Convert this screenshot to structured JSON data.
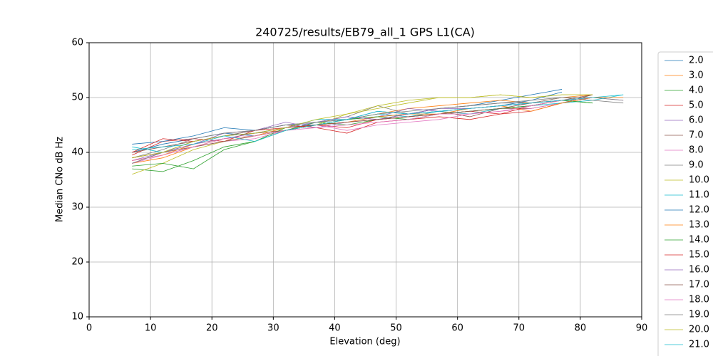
{
  "chart_data": {
    "type": "line",
    "title": "240725/results/EB79_all_1 GPS L1(CA)",
    "x_label": "Elevation (deg)",
    "y_label": "Median CNo dB Hz",
    "x": [
      7,
      12,
      17,
      22,
      27,
      32,
      37,
      42,
      47,
      52,
      57,
      62,
      67,
      72,
      77,
      82,
      87
    ],
    "xlim": [
      0,
      90
    ],
    "xticks": [
      0,
      10,
      20,
      30,
      40,
      50,
      60,
      70,
      80,
      90
    ],
    "ylim": [
      10,
      60
    ],
    "yticks": [
      10,
      20,
      30,
      40,
      50,
      60
    ],
    "grid": true,
    "legend": "outside right",
    "series": [
      {
        "name": "2.0",
        "color": "#1f77b4",
        "values": [
          40,
          41.5,
          42.5,
          43.5,
          43,
          44,
          45.5,
          46,
          47.5,
          47,
          48,
          48.5,
          49.5,
          50.5,
          51.5,
          null,
          null
        ]
      },
      {
        "name": "3.0",
        "color": "#ff7f0e",
        "values": [
          38,
          39,
          41,
          42.5,
          43,
          44.5,
          45,
          46,
          47,
          48,
          48.5,
          49,
          49.5,
          49,
          50,
          50.5,
          null
        ]
      },
      {
        "name": "4.0",
        "color": "#2ca02c",
        "values": [
          37,
          36.5,
          38.5,
          41,
          42,
          44,
          45.5,
          45,
          46,
          46.5,
          47,
          47.5,
          48,
          48.5,
          49.5,
          49,
          null
        ]
      },
      {
        "name": "5.0",
        "color": "#d62728",
        "values": [
          39.5,
          42,
          42.5,
          42,
          44,
          45,
          44.5,
          43.5,
          45.5,
          46,
          46.5,
          46,
          47,
          47.5,
          49,
          50,
          null
        ]
      },
      {
        "name": "6.0",
        "color": "#9467bd",
        "values": [
          38.5,
          40,
          41.5,
          43.5,
          44,
          45.5,
          44.5,
          45.5,
          46.5,
          48,
          47.5,
          48,
          48.5,
          49,
          49.5,
          50,
          49.5
        ]
      },
      {
        "name": "7.0",
        "color": "#8c564b",
        "values": [
          40,
          41,
          42,
          43,
          43.5,
          44,
          45,
          45.5,
          46,
          47,
          47.5,
          46.5,
          48,
          48,
          49,
          50.5,
          null
        ]
      },
      {
        "name": "8.0",
        "color": "#e377c2",
        "values": [
          38,
          39.5,
          41,
          42,
          42.5,
          44,
          45,
          44,
          45,
          45.5,
          46,
          47,
          47.5,
          48,
          49,
          50,
          null
        ]
      },
      {
        "name": "9.0",
        "color": "#7f7f7f",
        "values": [
          39,
          40.5,
          42.5,
          43.5,
          44,
          45,
          45.5,
          46.5,
          48.5,
          47,
          48,
          48.5,
          49,
          49,
          50,
          50,
          49.5
        ]
      },
      {
        "name": "10.0",
        "color": "#bcbd22",
        "values": [
          36,
          38,
          40.5,
          42,
          43,
          44,
          45,
          47,
          48,
          49,
          50,
          50,
          50.5,
          50,
          50.5,
          50.5,
          null
        ]
      },
      {
        "name": "11.0",
        "color": "#17becf",
        "values": [
          41,
          40,
          42,
          43,
          43.5,
          44.5,
          46,
          46,
          47,
          46.5,
          47.5,
          47,
          48,
          48.5,
          49,
          49.5,
          50.5
        ]
      },
      {
        "name": "12.0",
        "color": "#1f77b4",
        "values": [
          41.5,
          42,
          43,
          44.5,
          44,
          45,
          45,
          46,
          46.5,
          47,
          47.5,
          48,
          48.5,
          49.5,
          51,
          null,
          null
        ]
      },
      {
        "name": "13.0",
        "color": "#ff7f0e",
        "values": [
          38.5,
          39.5,
          41.5,
          42.5,
          43,
          44,
          45,
          45.5,
          46.5,
          47,
          47,
          48,
          48.5,
          47.5,
          49,
          50,
          50
        ]
      },
      {
        "name": "14.0",
        "color": "#2ca02c",
        "values": [
          37.5,
          38,
          37,
          40.5,
          42,
          44.5,
          45,
          46,
          46.5,
          46,
          47,
          47.5,
          48,
          48.5,
          49.5,
          49,
          null
        ]
      },
      {
        "name": "15.0",
        "color": "#d62728",
        "values": [
          40,
          42.5,
          42,
          43,
          44,
          44.5,
          45,
          44.5,
          46,
          46.5,
          47,
          47.5,
          47,
          48.5,
          49.5,
          50,
          null
        ]
      },
      {
        "name": "16.0",
        "color": "#9467bd",
        "values": [
          38,
          40,
          41.5,
          42.5,
          43.5,
          44.5,
          45.5,
          46.5,
          46,
          47,
          48,
          48,
          48.5,
          49,
          49.5,
          50,
          null
        ]
      },
      {
        "name": "17.0",
        "color": "#8c564b",
        "values": [
          39,
          40,
          41,
          42,
          43,
          44,
          45,
          45.5,
          46,
          46.5,
          47,
          47.5,
          48,
          49,
          49.5,
          50.5,
          null
        ]
      },
      {
        "name": "18.0",
        "color": "#e377c2",
        "values": [
          38.5,
          39.5,
          41,
          42.5,
          43,
          44,
          44.5,
          45,
          45.5,
          46,
          47,
          47,
          47.5,
          48.5,
          49.5,
          50,
          null
        ]
      },
      {
        "name": "19.0",
        "color": "#7f7f7f",
        "values": [
          38,
          40,
          42,
          43,
          44,
          45,
          45.5,
          46,
          47,
          47.5,
          48,
          48.5,
          49,
          49.5,
          50,
          49.5,
          49
        ]
      },
      {
        "name": "20.0",
        "color": "#bcbd22",
        "values": [
          39,
          40,
          42,
          43,
          43.5,
          44.5,
          46,
          47,
          48.5,
          49.5,
          50,
          50,
          50.5,
          50,
          50.5,
          50.5,
          null
        ]
      },
      {
        "name": "21.0",
        "color": "#17becf",
        "values": [
          40.5,
          41,
          41.5,
          43,
          42,
          44,
          45,
          46,
          47.5,
          47,
          47.5,
          48,
          48.5,
          49,
          49.5,
          50,
          50.5
        ]
      }
    ]
  }
}
